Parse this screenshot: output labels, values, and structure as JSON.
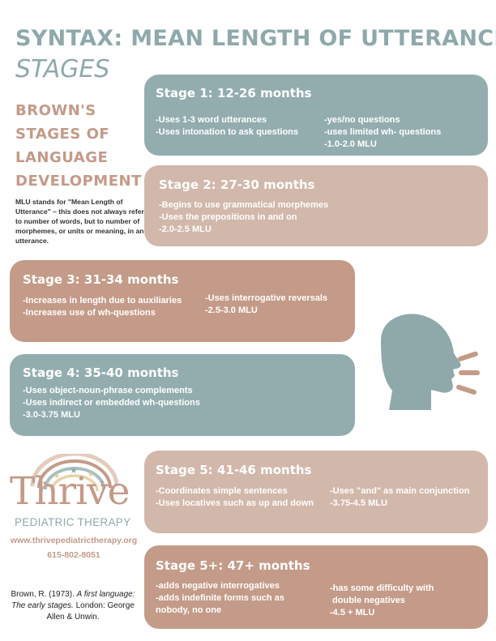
{
  "header": {
    "title": "SYNTAX: MEAN LENGTH OF UTTERANCE",
    "subtitle": "STAGES"
  },
  "sidebar": {
    "heading_lines": [
      "BROWN'S",
      "STAGES OF",
      "LANGUAGE",
      "DEVELOPMENT"
    ],
    "mlu_note": "MLU stands for \"Mean Length of Utterance\" – this does not always refer to number of words, but to number of morphemes, or units or meaning, in an utterance."
  },
  "stages": {
    "stage1": {
      "title": "Stage 1: 12-26 months",
      "col1": [
        "-Uses 1-3 word utterances",
        "-Uses intonation to ask questions"
      ],
      "col2": [
        "-yes/no questions",
        "-uses limited wh- questions",
        "-1.0-2.0 MLU"
      ]
    },
    "stage2": {
      "title": "Stage 2: 27-30 months",
      "col1": [
        "-Begins to use grammatical morphemes",
        "-Uses the prepositions in and on",
        "-2.0-2.5 MLU"
      ]
    },
    "stage3": {
      "title": "Stage 3: 31-34 months",
      "col1": [
        "-Increases in length due to auxiliaries",
        "-Increases use of wh-questions"
      ],
      "col2": [
        "-Uses interrogative reversals",
        "-2.5-3.0 MLU"
      ]
    },
    "stage4": {
      "title": "Stage 4: 35-40 months",
      "col1": [
        "-Uses object-noun-phrase complements",
        "-Uses indirect or embedded wh-questions",
        "-3.0-3.75 MLU"
      ]
    },
    "stage5": {
      "title": "Stage 5: 41-46 months",
      "col1": [
        "-Coordinates simple sentences",
        "-Uses locatives such as up and down"
      ],
      "col2": [
        "-Uses \"and\" as main conjunction",
        "-3.75-4.5 MLU"
      ]
    },
    "stage5plus": {
      "title": "Stage 5+: 47+ months",
      "col1": [
        "-adds negative interrogatives",
        "-adds indefinite forms such as",
        "nobody, no one"
      ],
      "col2": [
        "-has some difficulty with",
        " double negatives",
        "-4.5 + MLU"
      ]
    }
  },
  "branding": {
    "logo_word": "Thrive",
    "logo_sub": "PEDIATRIC THERAPY",
    "website": "www.thrivepediatrictherapy.org",
    "phone": "615-802-8051"
  },
  "citation": {
    "part1": "Brown, R. (1973). ",
    "italic": "A first language: The early stages.",
    "part2": " London: George Allen & Unwin."
  },
  "colors": {
    "teal": "#93adaf",
    "beige": "#d2b7ab",
    "rose": "#c49a88",
    "title_teal": "#8fa9ab"
  },
  "icons": {
    "speaking_head": "speaking-head-icon",
    "rainbow_logo": "rainbow-stars-icon"
  }
}
